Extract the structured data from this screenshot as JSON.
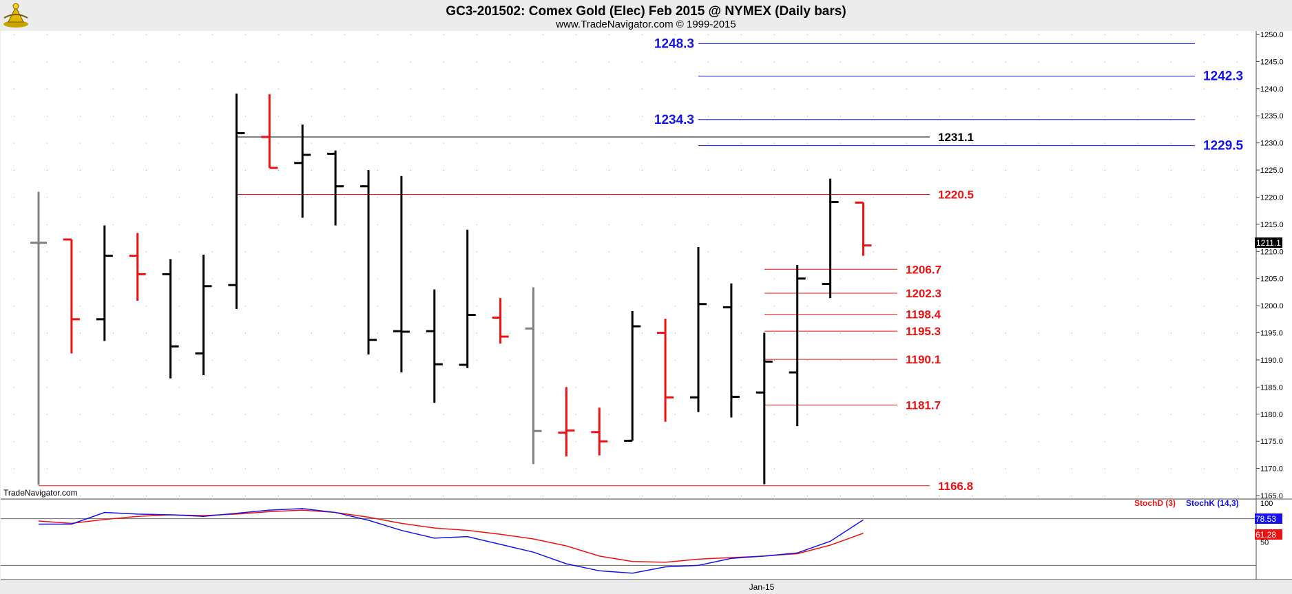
{
  "header": {
    "title": "GC3-201502:  Comex Gold (Elec) Feb 2015 @ NYMEX  (Daily bars)",
    "subtitle": "www.TradeNavigator.com © 1999-2015",
    "logo_icon": "trade-navigator-logo-icon"
  },
  "watermark": "TradeNavigator.com",
  "x_axis": {
    "label": "Jan-15"
  },
  "colors": {
    "up_bar": "#000000",
    "down_bar": "#ee1111",
    "neutral_bar": "#808080",
    "blue_level": "#1414e6",
    "red_level": "#ee1111",
    "stoch_d": "#ee1111",
    "stoch_k": "#1414e6"
  },
  "chart_data": [
    {
      "type": "ohlc",
      "name": "price",
      "ylim": [
        1165,
        1250
      ],
      "y_ticks": [
        "1165.0",
        "1170.0",
        "1175.0",
        "1180.0",
        "1185.0",
        "1190.0",
        "1195.0",
        "1200.0",
        "1205.0",
        "1210.0",
        "1215.0",
        "1220.0",
        "1225.0",
        "1230.0",
        "1235.0",
        "1240.0",
        "1245.0",
        "1250.0"
      ],
      "last_price_label": "1211.1",
      "bars": [
        {
          "open": 1211.6,
          "high": 1221.0,
          "low": 1167.0,
          "close": 1211.6,
          "color": "neutral"
        },
        {
          "open": 1212.2,
          "high": 1212.2,
          "low": 1191.2,
          "close": 1197.5,
          "color": "down"
        },
        {
          "open": 1197.5,
          "high": 1214.8,
          "low": 1193.5,
          "close": 1209.2,
          "color": "up"
        },
        {
          "open": 1209.2,
          "high": 1213.4,
          "low": 1200.9,
          "close": 1205.8,
          "color": "down"
        },
        {
          "open": 1205.8,
          "high": 1208.6,
          "low": 1186.6,
          "close": 1192.5,
          "color": "up"
        },
        {
          "open": 1191.2,
          "high": 1209.4,
          "low": 1187.2,
          "close": 1203.6,
          "color": "up"
        },
        {
          "open": 1203.8,
          "high": 1239.1,
          "low": 1199.4,
          "close": 1231.8,
          "color": "up"
        },
        {
          "open": 1231.1,
          "high": 1239.0,
          "low": 1225.4,
          "close": 1225.4,
          "color": "down"
        },
        {
          "open": 1226.3,
          "high": 1233.4,
          "low": 1216.2,
          "close": 1227.8,
          "color": "up"
        },
        {
          "open": 1228.0,
          "high": 1228.6,
          "low": 1214.8,
          "close": 1222.0,
          "color": "up"
        },
        {
          "open": 1222.0,
          "high": 1225.0,
          "low": 1191.0,
          "close": 1193.7,
          "color": "up"
        },
        {
          "open": 1195.3,
          "high": 1223.9,
          "low": 1187.7,
          "close": 1195.2,
          "color": "up"
        },
        {
          "open": 1195.3,
          "high": 1203.0,
          "low": 1182.1,
          "close": 1189.2,
          "color": "up"
        },
        {
          "open": 1189.1,
          "high": 1214.0,
          "low": 1188.5,
          "close": 1198.3,
          "color": "up"
        },
        {
          "open": 1197.8,
          "high": 1201.4,
          "low": 1193.0,
          "close": 1194.3,
          "color": "down"
        },
        {
          "open": 1195.8,
          "high": 1203.4,
          "low": 1170.8,
          "close": 1176.9,
          "color": "neutral"
        },
        {
          "open": 1176.6,
          "high": 1185.0,
          "low": 1172.2,
          "close": 1177.0,
          "color": "down"
        },
        {
          "open": 1176.7,
          "high": 1181.2,
          "low": 1172.4,
          "close": 1175.0,
          "color": "down"
        },
        {
          "open": 1175.1,
          "high": 1199.0,
          "low": 1175.1,
          "close": 1196.2,
          "color": "up"
        },
        {
          "open": 1195.0,
          "high": 1197.6,
          "low": 1178.6,
          "close": 1183.1,
          "color": "down"
        },
        {
          "open": 1183.1,
          "high": 1210.8,
          "low": 1180.4,
          "close": 1200.3,
          "color": "up"
        },
        {
          "open": 1199.7,
          "high": 1204.1,
          "low": 1179.4,
          "close": 1183.2,
          "color": "up"
        },
        {
          "open": 1184.0,
          "high": 1195.0,
          "low": 1167.1,
          "close": 1189.7,
          "color": "up"
        },
        {
          "open": 1187.7,
          "high": 1207.5,
          "low": 1177.8,
          "close": 1205.0,
          "color": "up"
        },
        {
          "open": 1204.0,
          "high": 1223.4,
          "low": 1201.4,
          "close": 1219.1,
          "color": "up"
        },
        {
          "open": 1219.0,
          "high": 1219.0,
          "low": 1209.2,
          "close": 1211.1,
          "color": "down"
        }
      ],
      "levels": [
        {
          "label": "1248.3",
          "value": 1248.3,
          "color": "blue",
          "from_bar": 20,
          "to_bar": 30,
          "label_side": "left"
        },
        {
          "label": "1242.3",
          "value": 1242.3,
          "color": "blue",
          "from_bar": 20,
          "to_bar": 30,
          "label_side": "right"
        },
        {
          "label": "1234.3",
          "value": 1234.3,
          "color": "blue",
          "from_bar": 20,
          "to_bar": 30,
          "label_side": "left"
        },
        {
          "label": "1229.5",
          "value": 1229.5,
          "color": "blue",
          "from_bar": 20,
          "to_bar": 30,
          "label_side": "right"
        },
        {
          "label": "1231.1",
          "value": 1231.1,
          "color": "black",
          "from_bar": 6,
          "to_bar": 27,
          "label_side": "end"
        },
        {
          "label": "1220.5",
          "value": 1220.5,
          "color": "red",
          "from_bar": 6,
          "to_bar": 27,
          "label_side": "end"
        },
        {
          "label": "1206.7",
          "value": 1206.7,
          "color": "red",
          "from_bar": 22,
          "to_bar": 26,
          "label_side": "end"
        },
        {
          "label": "1202.3",
          "value": 1202.3,
          "color": "red",
          "from_bar": 22,
          "to_bar": 26,
          "label_side": "end"
        },
        {
          "label": "1198.4",
          "value": 1198.4,
          "color": "red",
          "from_bar": 22,
          "to_bar": 26,
          "label_side": "end"
        },
        {
          "label": "1195.3",
          "value": 1195.3,
          "color": "red",
          "from_bar": 22,
          "to_bar": 26,
          "label_side": "end"
        },
        {
          "label": "1190.1",
          "value": 1190.1,
          "color": "red",
          "from_bar": 22,
          "to_bar": 26,
          "label_side": "end"
        },
        {
          "label": "1181.7",
          "value": 1181.7,
          "color": "red",
          "from_bar": 22,
          "to_bar": 26,
          "label_side": "end"
        },
        {
          "label": "1166.8",
          "value": 1166.8,
          "color": "red",
          "from_bar": 0,
          "to_bar": 27,
          "label_side": "end"
        }
      ]
    },
    {
      "type": "line",
      "name": "stochastic",
      "ylim": [
        0,
        100
      ],
      "y_ticks": [
        "100",
        "50"
      ],
      "reference_lines": [
        80,
        20
      ],
      "legend": [
        "StochD (3)",
        "StochK (14,3)"
      ],
      "series": [
        {
          "name": "StochD (3)",
          "color": "red",
          "label": "61.28",
          "values": [
            77,
            74,
            79,
            83,
            85,
            84,
            86,
            89,
            91,
            88,
            82,
            74,
            68,
            65,
            60,
            54,
            45,
            32,
            25,
            24,
            28,
            30,
            32,
            35,
            46,
            61.28
          ]
        },
        {
          "name": "StochK (14,3)",
          "color": "blue",
          "label": "78.53",
          "values": [
            73,
            73,
            88,
            86,
            85,
            83,
            87,
            91,
            93,
            88,
            78,
            65,
            55,
            57,
            47,
            37,
            22,
            13,
            10,
            18,
            20,
            29,
            32,
            36,
            51,
            78.53
          ]
        }
      ]
    }
  ]
}
